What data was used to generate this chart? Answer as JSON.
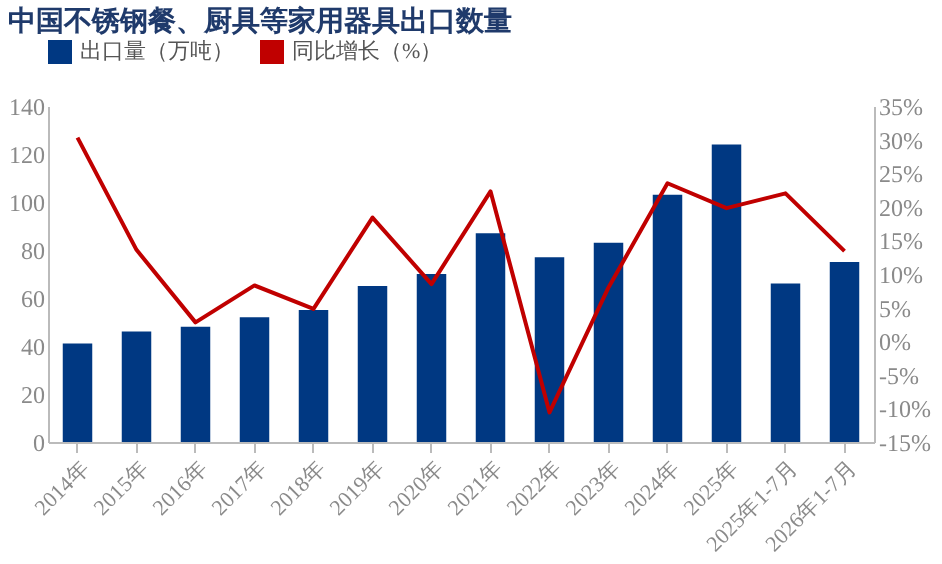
{
  "chart_data": {
    "type": "bar",
    "title": "中国不锈钢餐、厨具等家用器具出口数量",
    "categories": [
      "2014年",
      "2015年",
      "2016年",
      "2017年",
      "2018年",
      "2019年",
      "2020年",
      "2021年",
      "2022年",
      "2023年",
      "2024年",
      "2025年",
      "2025年1-7月",
      "2026年1-7月"
    ],
    "series": [
      {
        "name": "出口量（万吨）",
        "color": "#003882",
        "values": [
          41,
          46,
          48,
          52,
          55,
          65,
          70,
          87,
          77,
          83,
          103,
          124,
          66,
          75
        ]
      },
      {
        "name": "同比增长（%）",
        "type": "line",
        "axis": "y2",
        "color": "#c00000",
        "values": [
          30.3,
          13.6,
          2.8,
          8.3,
          4.8,
          18.4,
          8.5,
          22.3,
          -10.6,
          8,
          23.5,
          19.8,
          22,
          13.4
        ]
      }
    ],
    "ylim": [
      0,
      140
    ],
    "yticks": [
      0,
      20,
      40,
      60,
      80,
      100,
      120,
      140
    ],
    "y2lim": [
      -15,
      35
    ],
    "y2ticks": [
      {
        "value": -15,
        "label": "-15%"
      },
      {
        "value": -10,
        "label": "-10%"
      },
      {
        "value": -5,
        "label": "-5%"
      },
      {
        "value": 0,
        "label": "0%"
      },
      {
        "value": 5,
        "label": "5%"
      },
      {
        "value": 10,
        "label": "10%"
      },
      {
        "value": 15,
        "label": "15%"
      },
      {
        "value": 20,
        "label": "20%"
      },
      {
        "value": 25,
        "label": "25%"
      },
      {
        "value": 30,
        "label": "30%"
      },
      {
        "value": 35,
        "label": "35%"
      }
    ],
    "legend": "top",
    "grid": false,
    "marker": "none"
  }
}
